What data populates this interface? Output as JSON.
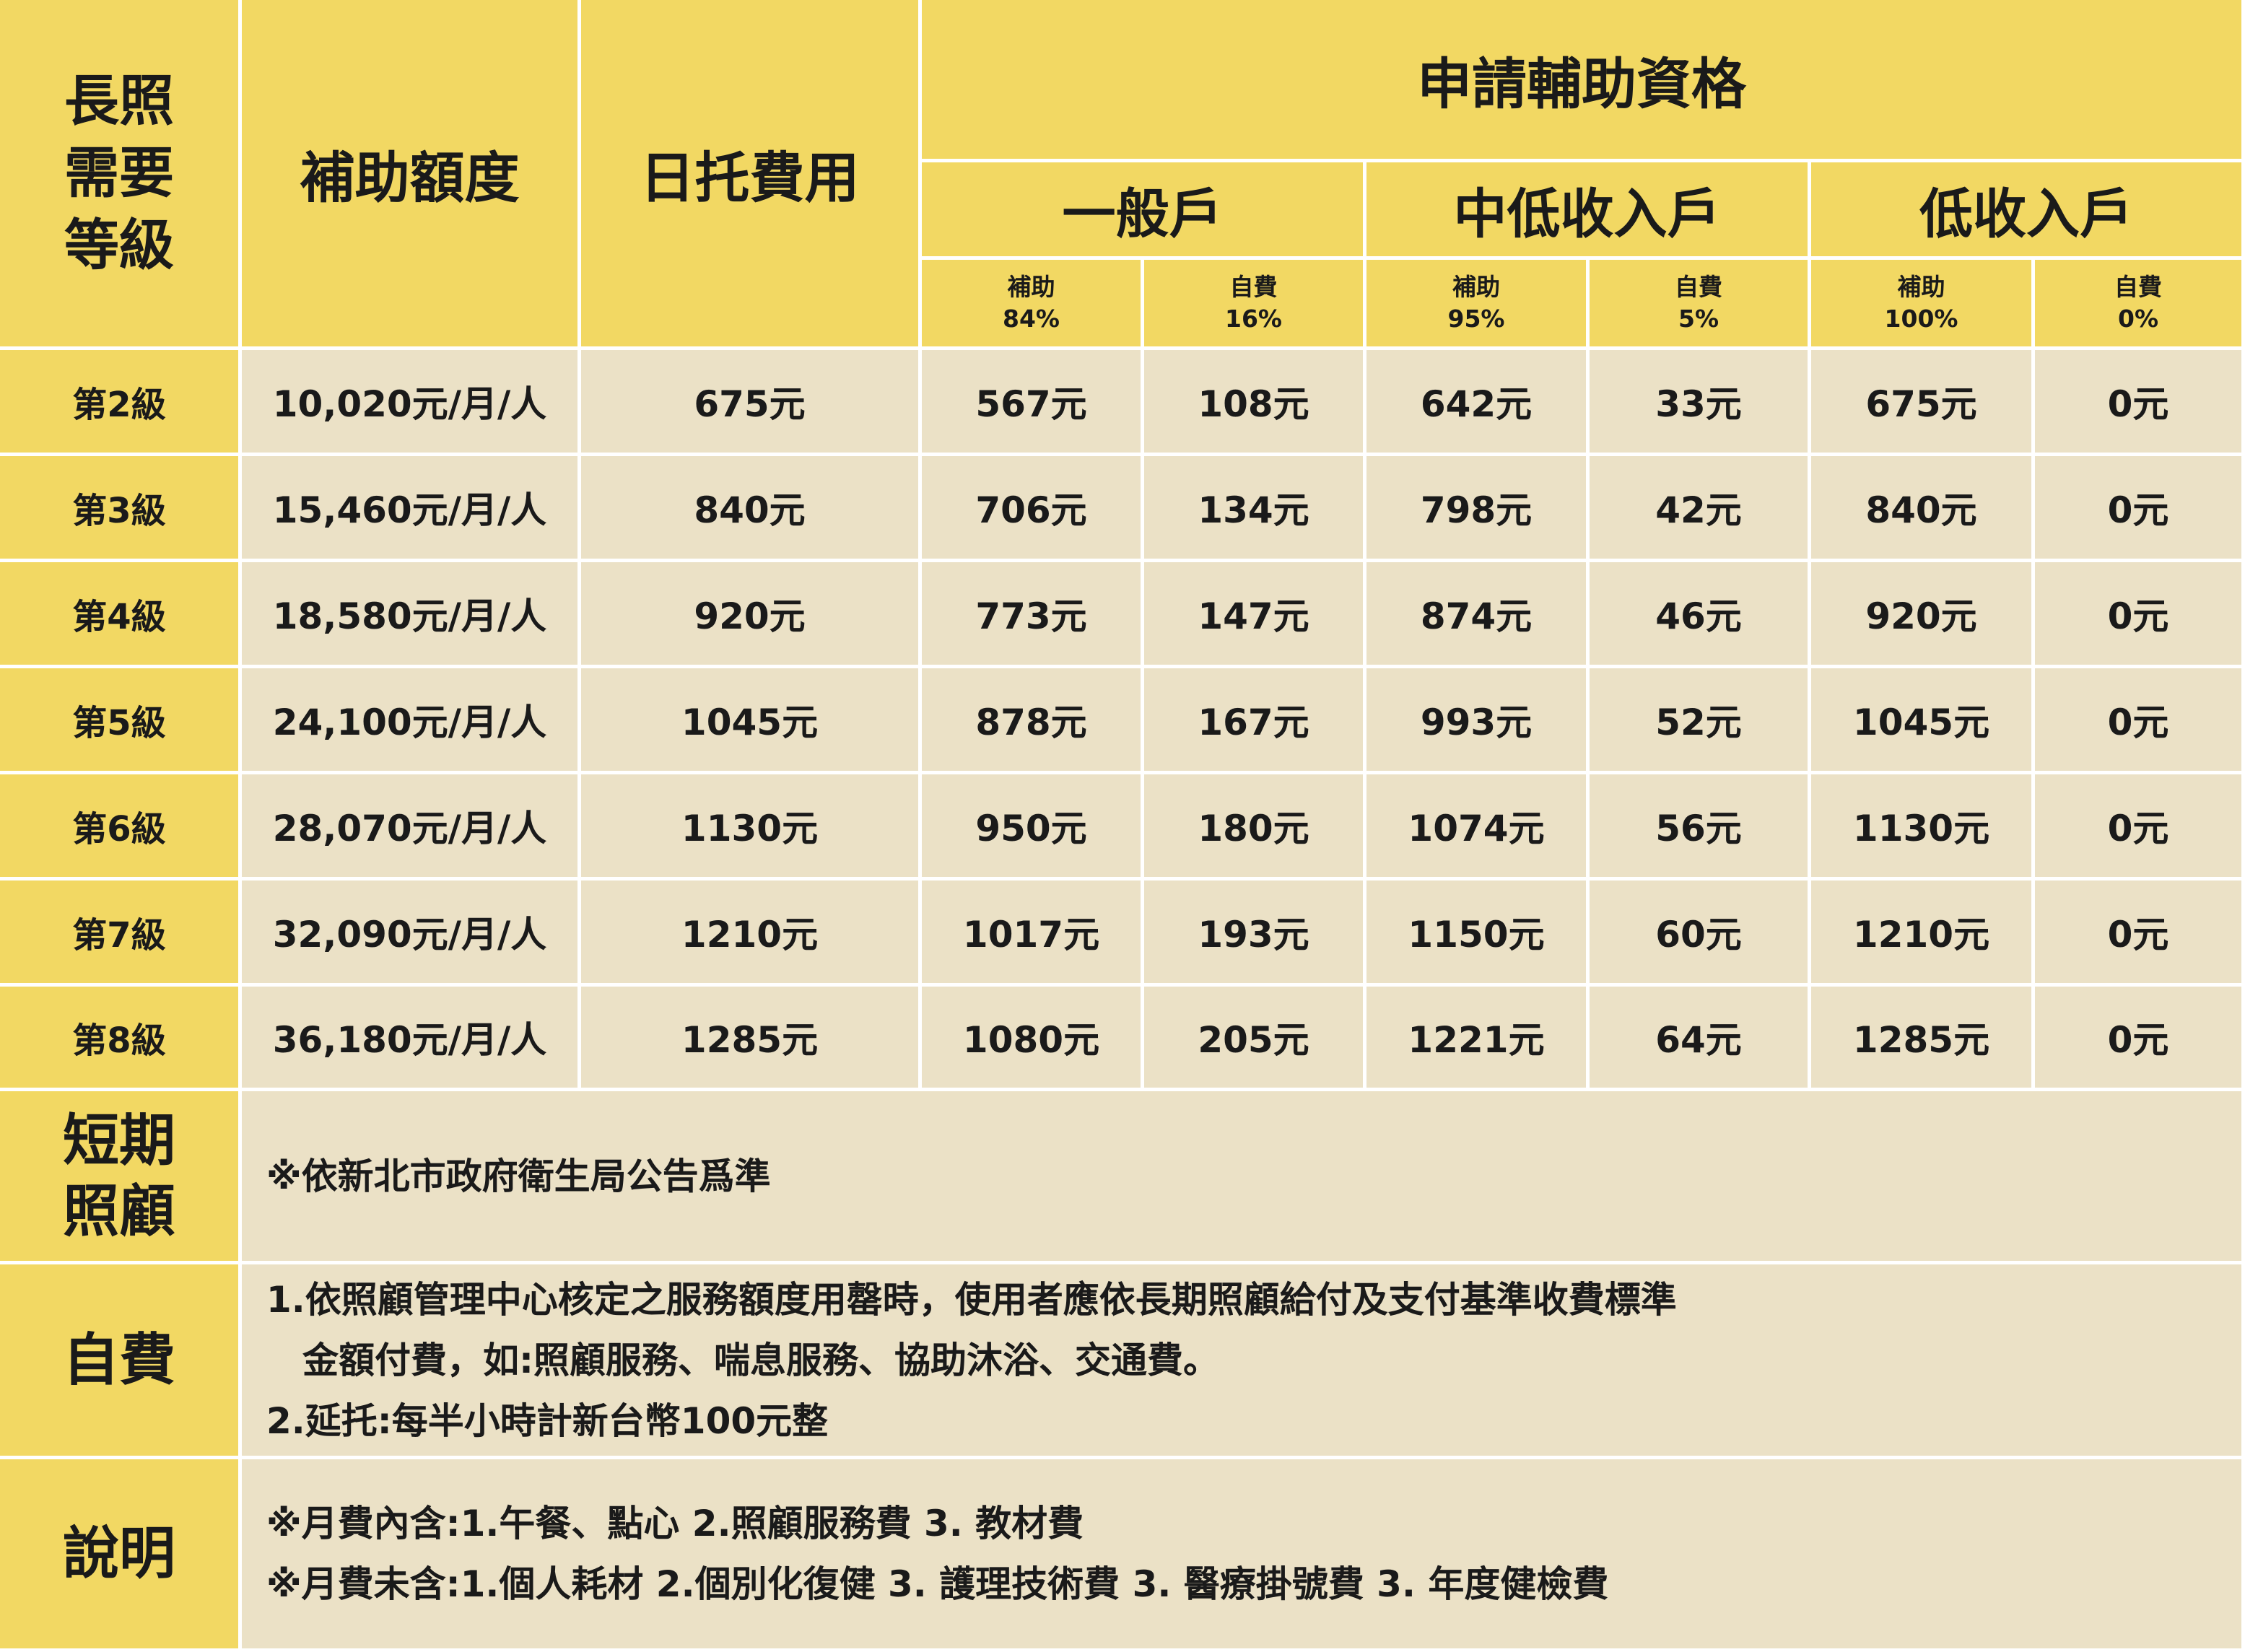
{
  "header": {
    "level_label_lines": [
      "長照",
      "需要",
      "等級"
    ],
    "subsidy_amount": "補助額度",
    "daycare_fee": "日托費用",
    "eligibility": "申請輔助資格",
    "groups": [
      {
        "name": "一般戶",
        "sub": [
          {
            "l1": "補助",
            "l2": "84%"
          },
          {
            "l1": "自費",
            "l2": "16%"
          }
        ]
      },
      {
        "name": "中低收入戶",
        "sub": [
          {
            "l1": "補助",
            "l2": "95%"
          },
          {
            "l1": "自費",
            "l2": "5%"
          }
        ]
      },
      {
        "name": "低收入戶",
        "sub": [
          {
            "l1": "補助",
            "l2": "100%"
          },
          {
            "l1": "自費",
            "l2": "0%"
          }
        ]
      }
    ]
  },
  "rows": [
    {
      "level": "第2級",
      "amount": "10,020元/月/人",
      "fee": "675元",
      "cells": [
        "567元",
        "108元",
        "642元",
        "33元",
        "675元",
        "0元"
      ]
    },
    {
      "level": "第3級",
      "amount": "15,460元/月/人",
      "fee": "840元",
      "cells": [
        "706元",
        "134元",
        "798元",
        "42元",
        "840元",
        "0元"
      ]
    },
    {
      "level": "第4級",
      "amount": "18,580元/月/人",
      "fee": "920元",
      "cells": [
        "773元",
        "147元",
        "874元",
        "46元",
        "920元",
        "0元"
      ]
    },
    {
      "level": "第5級",
      "amount": "24,100元/月/人",
      "fee": "1045元",
      "cells": [
        "878元",
        "167元",
        "993元",
        "52元",
        "1045元",
        "0元"
      ]
    },
    {
      "level": "第6級",
      "amount": "28,070元/月/人",
      "fee": "1130元",
      "cells": [
        "950元",
        "180元",
        "1074元",
        "56元",
        "1130元",
        "0元"
      ]
    },
    {
      "level": "第7級",
      "amount": "32,090元/月/人",
      "fee": "1210元",
      "cells": [
        "1017元",
        "193元",
        "1150元",
        "60元",
        "1210元",
        "0元"
      ]
    },
    {
      "level": "第8級",
      "amount": "36,180元/月/人",
      "fee": "1285元",
      "cells": [
        "1080元",
        "205元",
        "1221元",
        "64元",
        "1285元",
        "0元"
      ]
    }
  ],
  "short_term": {
    "label_lines": [
      "短期",
      "照顧"
    ],
    "text": "※依新北市政府衛生局公告爲準"
  },
  "self_pay": {
    "label": "自費",
    "lines": [
      "1.依照顧管理中心核定之服務額度用罄時，使用者應依長期照顧給付及支付基準收費標準",
      "金額付費，如:照顧服務、喘息服務、協助沐浴、交通費。",
      "2.延托:每半小時計新台幣100元整"
    ]
  },
  "notes": {
    "label": "說明",
    "lines": [
      "※月費內含:1.午餐、點心  2.照顧服務費  3. 教材費",
      "※月費未含:1.個人耗材 2.個別化復健  3. 護理技術費  3. 醫療掛號費  3. 年度健檢費"
    ]
  },
  "colors": {
    "header_yellow": "#f2d863",
    "body_beige": "#ebe1c6",
    "divider": "#ffffff"
  }
}
